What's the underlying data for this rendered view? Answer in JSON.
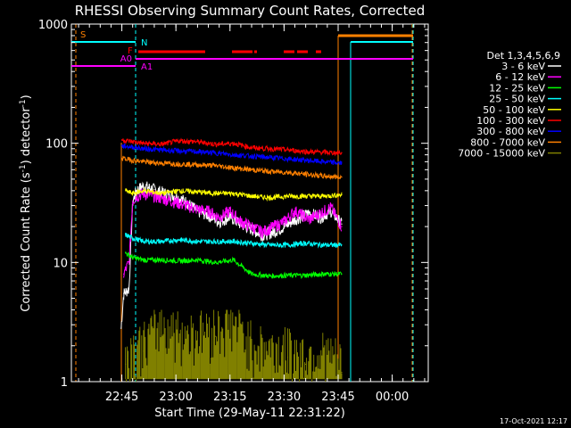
{
  "chart_data": {
    "type": "line",
    "title": "RHESSI Observing Summary Count Rates, Corrected",
    "xlabel": "Start Time (29-May-11 22:31:22)",
    "ylabel": "Corrected Count Rate (s⁻¹ detector⁻¹)",
    "ylabel_main": "Corrected Count Rate (s",
    "ylabel_mid": ") detector",
    "ylabel_end": ")",
    "ylabel_exp": "-1",
    "y_scale": "log",
    "ylim": [
      1,
      1000
    ],
    "xlim_minutes": [
      0,
      99
    ],
    "x_tick_labels": [
      "22:45",
      "23:00",
      "23:15",
      "23:30",
      "23:45",
      "00:00"
    ],
    "y_tick_labels": [
      "1",
      "10",
      "100",
      "1000"
    ],
    "legend_title": "Det 1,3,4,5,6,9",
    "legend_position": "right",
    "timestamp": "17-Oct-2021 12:17",
    "series": [
      {
        "name": "3 - 6 keV",
        "color": "#ffffff",
        "x": [
          13.8,
          14.5,
          16,
          17,
          18,
          20,
          23,
          26,
          29,
          32,
          35,
          38,
          41,
          44,
          47,
          50,
          53,
          56,
          59,
          62,
          66,
          69,
          72,
          75
        ],
        "values": [
          2.8,
          5.5,
          6,
          32,
          40,
          44,
          41,
          38,
          36,
          32,
          27,
          25,
          22,
          24,
          21,
          19,
          17,
          18,
          20,
          23,
          26,
          24,
          27,
          21
        ]
      },
      {
        "name": "6 - 12 keV",
        "color": "#ff00ff",
        "x": [
          14.5,
          16,
          17,
          18,
          20,
          23,
          26,
          29,
          32,
          35,
          38,
          41,
          44,
          47,
          50,
          53,
          56,
          59,
          62,
          66,
          69,
          72,
          75
        ],
        "values": [
          8,
          10,
          33,
          36,
          38,
          36,
          34,
          32,
          30,
          28,
          27,
          24,
          27,
          22,
          20,
          18,
          20,
          22,
          27,
          23,
          26,
          29,
          20
        ]
      },
      {
        "name": "12 - 25 keV",
        "color": "#00ff00",
        "x": [
          15,
          17,
          20,
          25,
          30,
          35,
          40,
          45,
          50,
          55,
          60,
          65,
          70,
          75
        ],
        "values": [
          12,
          11,
          10.5,
          10.5,
          10.3,
          10.5,
          10,
          10.5,
          8,
          7.7,
          7.8,
          7.8,
          8,
          8
        ]
      },
      {
        "name": "25 - 50 keV",
        "color": "#00ffff",
        "x": [
          15,
          17,
          20,
          25,
          30,
          35,
          40,
          45,
          50,
          55,
          60,
          65,
          70,
          75
        ],
        "values": [
          17,
          16,
          15,
          15,
          15.5,
          15,
          15,
          15,
          14.5,
          14,
          14,
          14.5,
          14,
          14
        ]
      },
      {
        "name": "50 - 100 keV",
        "color": "#ffff00",
        "x": [
          15,
          17,
          20,
          25,
          30,
          35,
          40,
          45,
          50,
          55,
          60,
          65,
          70,
          75
        ],
        "values": [
          40,
          38,
          40,
          38,
          40,
          39,
          38,
          38,
          36,
          35,
          36,
          36,
          36,
          37
        ]
      },
      {
        "name": "100 - 300 keV",
        "color": "#ff0000",
        "x": [
          14,
          17,
          20,
          25,
          30,
          35,
          40,
          45,
          50,
          55,
          60,
          65,
          70,
          75
        ],
        "values": [
          107,
          103,
          100,
          98,
          105,
          103,
          98,
          100,
          92,
          90,
          88,
          85,
          84,
          83
        ]
      },
      {
        "name": "300 - 800 keV",
        "color": "#0000ff",
        "x": [
          14,
          17,
          20,
          25,
          30,
          35,
          40,
          45,
          50,
          55,
          60,
          65,
          70,
          75
        ],
        "values": [
          95,
          93,
          90,
          88,
          86,
          85,
          83,
          80,
          78,
          76,
          74,
          72,
          70,
          68
        ]
      },
      {
        "name": "800 - 7000 keV",
        "color": "#ff8000",
        "x": [
          14,
          17,
          20,
          25,
          30,
          35,
          40,
          45,
          50,
          55,
          60,
          65,
          70,
          75
        ],
        "values": [
          75,
          72,
          70,
          68,
          67,
          66,
          65,
          62,
          60,
          58,
          57,
          55,
          53,
          52
        ]
      },
      {
        "name": "7000 - 15000 keV",
        "color": "#808000",
        "x": [
          15,
          20,
          25,
          30,
          35,
          40,
          45,
          50,
          55,
          60,
          65,
          70,
          75
        ],
        "values": [
          1.4,
          1.8,
          2.6,
          2.2,
          2.2,
          2.4,
          2.6,
          1.8,
          1.6,
          1.6,
          1.4,
          1.5,
          1.2
        ]
      }
    ],
    "state_bars": [
      {
        "label": "S",
        "color": "#ff8000"
      },
      {
        "label": "N",
        "color": "#00ffff"
      },
      {
        "label": "F",
        "color": "#ff0000"
      },
      {
        "label": "A0",
        "color": "#ff00ff"
      },
      {
        "label": "A1",
        "color": "#ff00ff"
      }
    ]
  }
}
